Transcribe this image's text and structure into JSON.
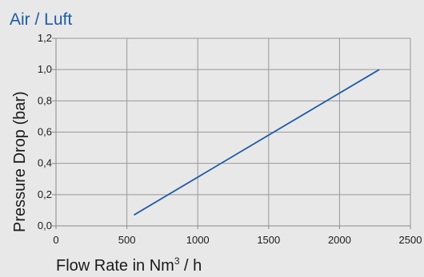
{
  "chart_data": {
    "type": "line",
    "title": "Air / Luft",
    "ylabel": "Pressure Drop (bar)",
    "xlabel_main": "Flow Rate in Nm",
    "xlabel_sup": "3",
    "xlabel_tail": " / h",
    "xlim": [
      0,
      2500
    ],
    "ylim": [
      0,
      1.2
    ],
    "xticks": [
      0,
      500,
      1000,
      1500,
      2000,
      2500
    ],
    "xtick_labels": [
      "0",
      "500",
      "1000",
      "1500",
      "2000",
      "2500"
    ],
    "yticks": [
      0,
      0.2,
      0.4,
      0.6,
      0.8,
      1.0,
      1.2
    ],
    "ytick_labels": [
      "0,0",
      "0,2",
      "0,4",
      "0,6",
      "0,8",
      "1,0",
      "1,2"
    ],
    "grid": true,
    "series": [
      {
        "x": [
          550,
          2280
        ],
        "y": [
          0.07,
          1.0
        ]
      }
    ],
    "colors": {
      "line": "#1f5ba6",
      "title": "#1f5ba6",
      "grid": "#999999",
      "background": "#e8e8e9"
    }
  }
}
